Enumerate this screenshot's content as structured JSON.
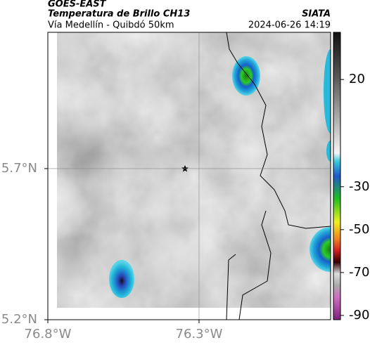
{
  "header": {
    "title": "GOES-EAST",
    "subtitle": "Temperatura de Brillo CH13",
    "location": "Vía Medellín - Quibdó 50km",
    "source": "SIATA",
    "datetime": "2024-06-26 14:19"
  },
  "map": {
    "xlim": [
      -76.8,
      -75.865
    ],
    "ylim": [
      5.2,
      6.151
    ],
    "xticks": [
      {
        "value": -76.8,
        "label": "76.8°W"
      },
      {
        "value": -76.3,
        "label": "76.3°W"
      }
    ],
    "yticks": [
      {
        "value": 5.2,
        "label": "5.2°N"
      },
      {
        "value": 5.7,
        "label": "5.7°N"
      }
    ],
    "grid": true
  },
  "colorbar": {
    "lim": [
      -92,
      42
    ],
    "ticks": [
      20,
      -30,
      -50,
      -70,
      -90
    ]
  }
}
